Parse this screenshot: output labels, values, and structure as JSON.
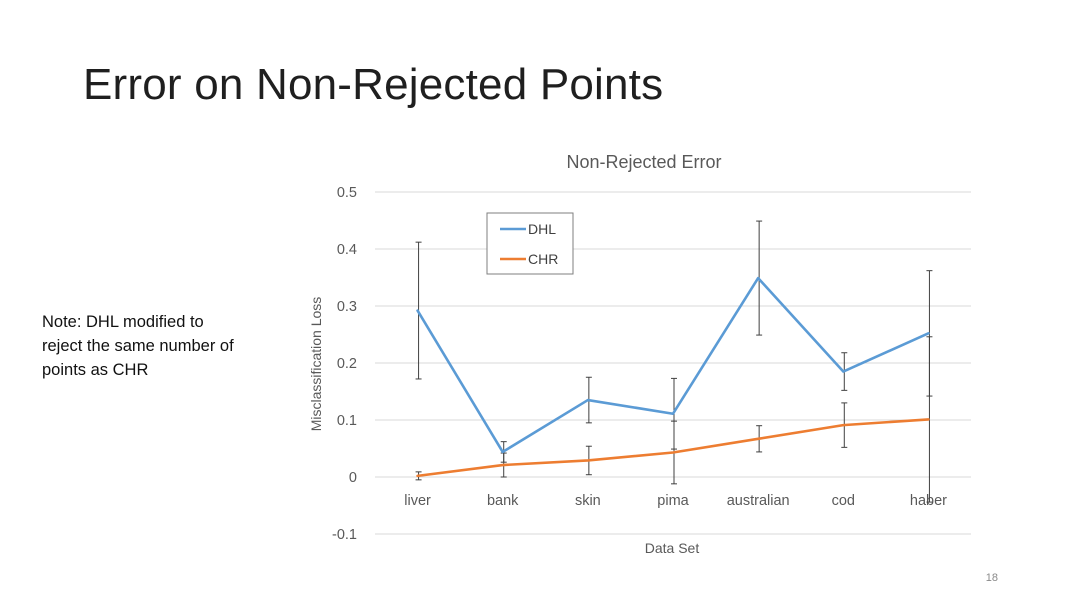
{
  "slide": {
    "title": "Error on Non-Rejected Points",
    "note": "Note: DHL modified to reject the same number of points as CHR",
    "page_number": "18"
  },
  "chart_data": {
    "type": "line",
    "title": "Non-Rejected Error",
    "xlabel": "Data Set",
    "ylabel": "Misclassification Loss",
    "categories": [
      "liver",
      "bank",
      "skin",
      "pima",
      "australian",
      "cod",
      "haber"
    ],
    "ylim": [
      -0.1,
      0.5
    ],
    "yticks": [
      -0.1,
      0,
      0.1,
      0.2,
      0.3,
      0.4,
      0.5
    ],
    "ytick_labels": [
      "-0.1",
      "0",
      "0.1",
      "0.2",
      "0.3",
      "0.4",
      "0.5"
    ],
    "grid": true,
    "legend_position": "top-left",
    "series": [
      {
        "name": "DHL",
        "color": "#5b9bd5",
        "values": [
          0.292,
          0.044,
          0.135,
          0.111,
          0.349,
          0.185,
          0.252
        ],
        "error": [
          0.12,
          0.018,
          0.04,
          0.062,
          0.1,
          0.033,
          0.11
        ]
      },
      {
        "name": "CHR",
        "color": "#ed7d31",
        "values": [
          0.002,
          0.021,
          0.029,
          0.043,
          0.067,
          0.091,
          0.101
        ],
        "error": [
          0.007,
          0.021,
          0.025,
          0.055,
          0.023,
          0.039,
          0.145
        ]
      }
    ]
  }
}
